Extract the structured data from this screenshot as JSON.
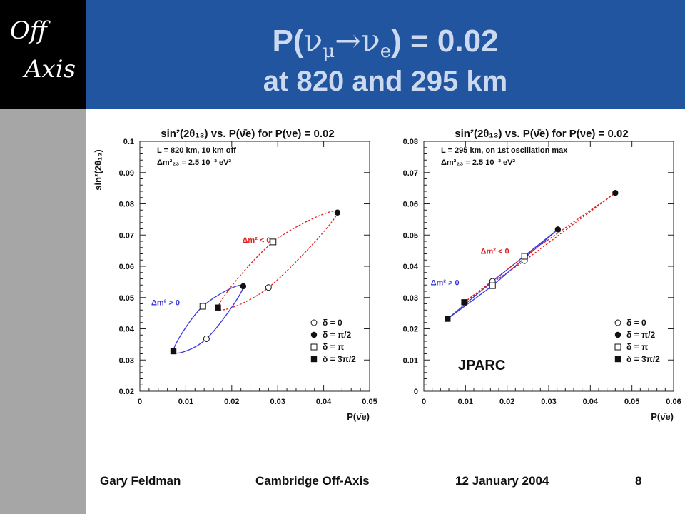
{
  "logo": {
    "line1": "Off",
    "line2": "Axis"
  },
  "header": {
    "title_prefix": "P(",
    "nu": "ν",
    "mu": "μ",
    "arrow": "→",
    "e": "e",
    "title_suffix": ") = 0.02",
    "title_line2": "at 820 and 295 km"
  },
  "footer": {
    "author": "Gary Feldman",
    "talk": "Cambridge Off-Axis",
    "date": "12 January 2004",
    "page": "8"
  },
  "colors": {
    "header_bg": "#2155a0",
    "sidebar": "#a6a6a6",
    "blue_curve": "#3a3adc",
    "red_curve": "#dd2222"
  },
  "chart_data": [
    {
      "type": "scatter",
      "title": "sin²(2θ₁₃) vs. P(ν̄e) for P(νe) = 0.02",
      "xlabel": "P(ν̄e)",
      "ylabel": "sin²(2θ₁₃)",
      "xlim": [
        0,
        0.05
      ],
      "ylim": [
        0.02,
        0.1
      ],
      "xticks": [
        "0",
        "0.01",
        "0.02",
        "0.03",
        "0.04",
        "0.05"
      ],
      "yticks": [
        "0.02",
        "0.03",
        "0.04",
        "0.05",
        "0.06",
        "0.07",
        "0.08",
        "0.09",
        "0.1"
      ],
      "info_line1": "L = 820 km, 10 km off",
      "info_line2": "Δm²₂₃ = 2.5 10⁻³ eV²",
      "annotations": [
        {
          "text": "Δm² < 0",
          "x": 0.0285,
          "y": 0.0675,
          "color": "#dd2222"
        },
        {
          "text": "Δm² > 0",
          "x": 0.0087,
          "y": 0.0475,
          "color": "#3a3adc"
        }
      ],
      "legend": [
        "δ = 0",
        "δ = π/2",
        "δ = π",
        "δ = 3π/2"
      ],
      "series": [
        {
          "ordering": "normal",
          "color": "#3a3adc",
          "points": [
            {
              "delta": "0",
              "x": 0.0145,
              "y": 0.0368
            },
            {
              "delta": "π/2",
              "x": 0.0225,
              "y": 0.0536
            },
            {
              "delta": "π",
              "x": 0.0137,
              "y": 0.0472
            },
            {
              "delta": "3π/2",
              "x": 0.0073,
              "y": 0.0328
            }
          ]
        },
        {
          "ordering": "inverted",
          "color": "#dd2222",
          "points": [
            {
              "delta": "0",
              "x": 0.028,
              "y": 0.0532
            },
            {
              "delta": "π/2",
              "x": 0.043,
              "y": 0.0772
            },
            {
              "delta": "π",
              "x": 0.029,
              "y": 0.0678
            },
            {
              "delta": "3π/2",
              "x": 0.017,
              "y": 0.0468
            }
          ]
        }
      ]
    },
    {
      "type": "scatter",
      "title": "sin²(2θ₁₃) vs. P(ν̄e) for P(νe) = 0.02",
      "xlabel": "P(ν̄e)",
      "ylabel": "",
      "xlim": [
        0,
        0.06
      ],
      "ylim": [
        0,
        0.08
      ],
      "xticks": [
        "0",
        "0.01",
        "0.02",
        "0.03",
        "0.04",
        "0.05",
        "0.06"
      ],
      "yticks": [
        "0",
        "0.01",
        "0.02",
        "0.03",
        "0.04",
        "0.05",
        "0.06",
        "0.07",
        "0.08"
      ],
      "info_line1": "L = 295 km, on 1st oscillation max",
      "info_line2": "Δm²₂₃ = 2.5 10⁻³ eV²",
      "label": "JPARC",
      "annotations": [
        {
          "text": "Δm² < 0",
          "x": 0.0205,
          "y": 0.044,
          "color": "#dd2222"
        },
        {
          "text": "Δm² > 0",
          "x": 0.0085,
          "y": 0.034,
          "color": "#3a3adc"
        }
      ],
      "legend": [
        "δ = 0",
        "δ = π/2",
        "δ = π",
        "δ = 3π/2"
      ],
      "series": [
        {
          "ordering": "normal",
          "color": "#3a3adc",
          "points": [
            {
              "delta": "0",
              "x": 0.0165,
              "y": 0.0352
            },
            {
              "delta": "π/2",
              "x": 0.0322,
              "y": 0.0518
            },
            {
              "delta": "π",
              "x": 0.0165,
              "y": 0.0338
            },
            {
              "delta": "3π/2",
              "x": 0.0057,
              "y": 0.0232
            }
          ]
        },
        {
          "ordering": "inverted",
          "color": "#dd2222",
          "points": [
            {
              "delta": "0",
              "x": 0.0242,
              "y": 0.0418
            },
            {
              "delta": "π/2",
              "x": 0.046,
              "y": 0.0635
            },
            {
              "delta": "π",
              "x": 0.0242,
              "y": 0.0432
            },
            {
              "delta": "3π/2",
              "x": 0.0097,
              "y": 0.0285
            }
          ]
        }
      ]
    }
  ]
}
